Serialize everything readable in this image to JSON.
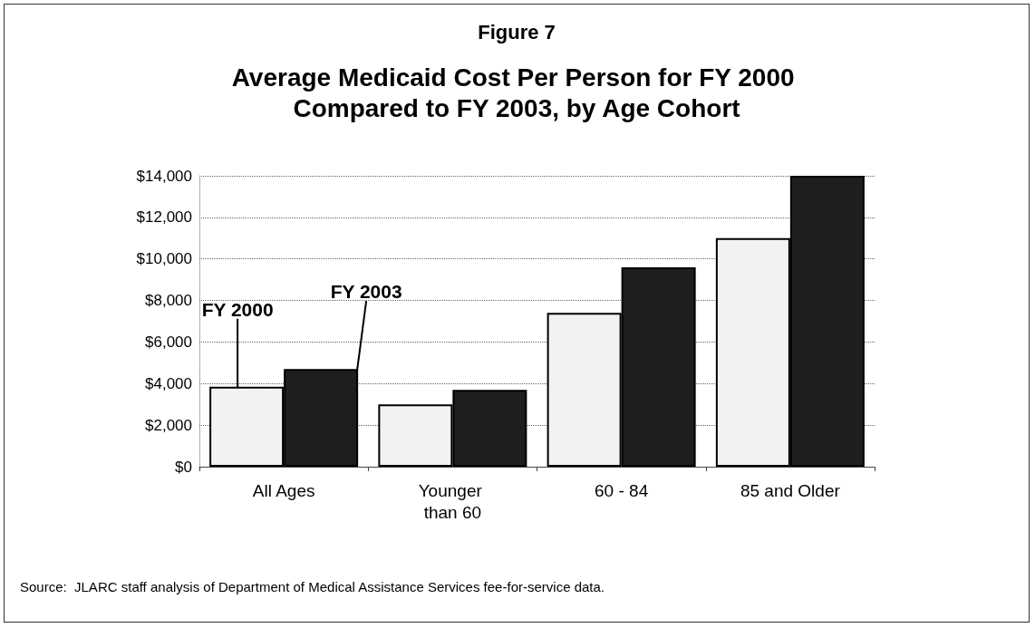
{
  "chart_data": {
    "type": "bar",
    "title": "Figure 7",
    "subtitle": "Average Medicaid Cost Per Person for FY 2000 Compared to FY 2003, by Age Cohort",
    "categories": [
      "All Ages",
      "Younger than 60",
      "60 - 84",
      "85 and Older"
    ],
    "series": [
      {
        "name": "FY 2000",
        "color": "#f2f2f2",
        "values": [
          3850,
          3000,
          7400,
          11000
        ]
      },
      {
        "name": "FY 2003",
        "color": "#1e1e1e",
        "values": [
          4700,
          3700,
          9600,
          14000
        ]
      }
    ],
    "ylim": [
      0,
      14000
    ],
    "yticks": [
      {
        "value": 0,
        "label": "$0"
      },
      {
        "value": 2000,
        "label": "$2,000"
      },
      {
        "value": 4000,
        "label": "$4,000"
      },
      {
        "value": 6000,
        "label": "$6,000"
      },
      {
        "value": 8000,
        "label": "$8,000"
      },
      {
        "value": 10000,
        "label": "$10,000"
      },
      {
        "value": 12000,
        "label": "$12,000"
      },
      {
        "value": 14000,
        "label": "$14,000"
      }
    ],
    "grid": "y",
    "legend": false,
    "annotations": [
      "Source:  JLARC staff analysis of Department of Medical Assistance Services fee-for-service data."
    ]
  }
}
